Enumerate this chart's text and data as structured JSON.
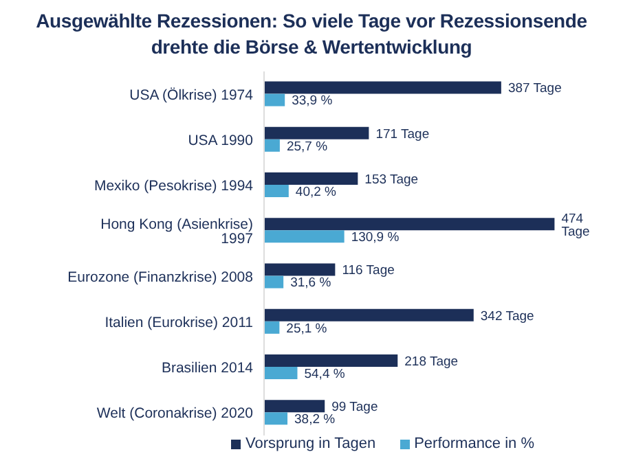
{
  "chart_data": {
    "type": "bar",
    "orientation": "horizontal",
    "title": "Ausgewählte Rezessionen: So viele Tage vor Rezessionsende drehte die Börse & Wertentwicklung",
    "categories": [
      "USA (Ölkrise) 1974",
      "USA 1990",
      "Mexiko (Pesokrise) 1994",
      "Hong Kong (Asienkrise) 1997",
      "Eurozone (Finanzkrise) 2008",
      "Italien (Eurokrise) 2011",
      "Brasilien 2014",
      "Welt (Coronakrise) 2020"
    ],
    "series": [
      {
        "name": "Vorsprung in Tagen",
        "color": "#1c2f58",
        "values": [
          387,
          171,
          153,
          474,
          116,
          342,
          218,
          99
        ],
        "value_labels": [
          "387 Tage",
          "171 Tage",
          "153 Tage",
          "474 Tage",
          "116 Tage",
          "342 Tage",
          "218 Tage",
          "99 Tage"
        ]
      },
      {
        "name": "Performance in %",
        "color": "#4aa9d3",
        "values": [
          33.9,
          25.7,
          40.2,
          130.9,
          31.6,
          25.1,
          54.4,
          38.2
        ],
        "value_labels": [
          "33,9 %",
          "25,7 %",
          "40,2 %",
          "130,9 %",
          "31,6 %",
          "25,1 %",
          "54,4 %",
          "38,2 %"
        ]
      }
    ],
    "legend": "bottom"
  }
}
